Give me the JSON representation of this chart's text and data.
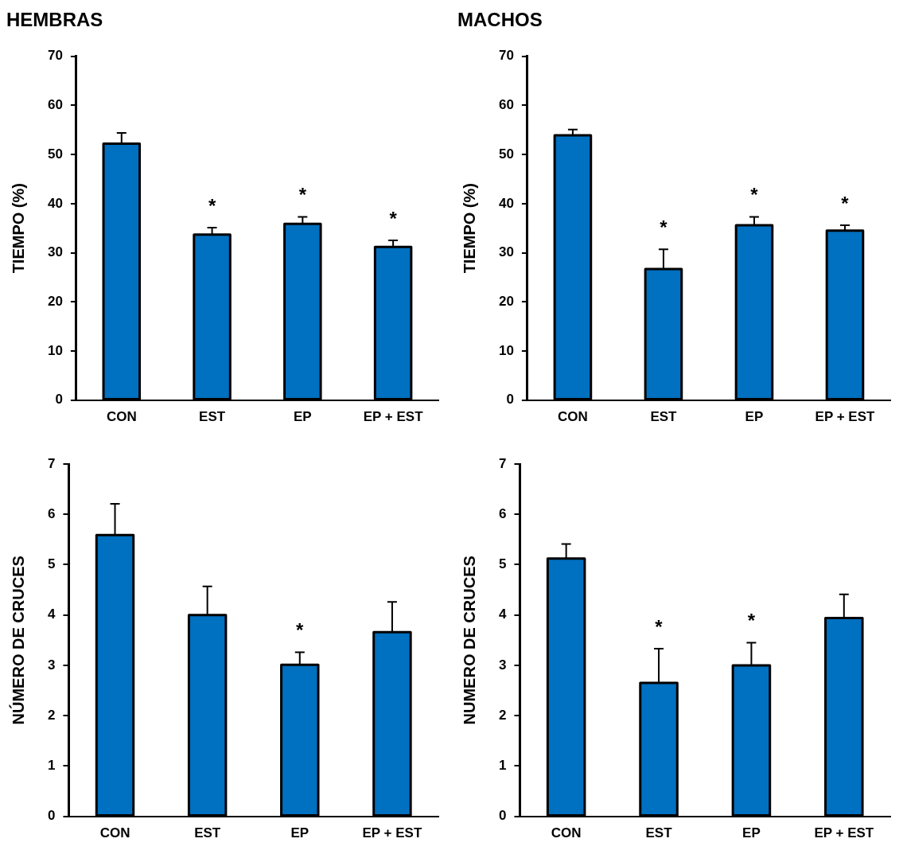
{
  "chart_data": [
    {
      "type": "bar",
      "title": "HEMBRAS",
      "ylabel": "TIEMPO (%)",
      "categories": [
        "CON",
        "EST",
        "EP",
        "EP + EST"
      ],
      "values": [
        52.2,
        33.7,
        35.9,
        31.2
      ],
      "color": "#0070c0",
      "errors": [
        [
          52.2,
          54.4
        ],
        [
          33.7,
          35.1
        ],
        [
          35.9,
          37.3
        ],
        [
          31.2,
          32.5
        ]
      ],
      "ylim": [
        0,
        70
      ],
      "yticks": [
        0,
        10,
        20,
        30,
        40,
        50,
        60,
        70
      ],
      "grid": false,
      "legend": false,
      "value_labels": [
        null,
        "*",
        "*",
        "*"
      ]
    },
    {
      "type": "bar",
      "title": "MACHOS",
      "ylabel": "TIEMPO (%)",
      "categories": [
        "CON",
        "EST",
        "EP",
        "EP + EST"
      ],
      "values": [
        53.9,
        26.7,
        35.6,
        34.5
      ],
      "color": "#0070c0",
      "errors": [
        [
          53.9,
          55.1
        ],
        [
          26.7,
          30.7
        ],
        [
          35.6,
          37.3
        ],
        [
          34.5,
          35.6
        ]
      ],
      "ylim": [
        0,
        70
      ],
      "yticks": [
        0,
        10,
        20,
        30,
        40,
        50,
        60,
        70
      ],
      "grid": false,
      "legend": false,
      "value_labels": [
        null,
        "*",
        "*",
        "*"
      ]
    },
    {
      "type": "bar",
      "ylabel": "NÚMERO DE CRUCES",
      "categories": [
        "CON",
        "EST",
        "EP",
        "EP + EST"
      ],
      "values": [
        5.59,
        4.0,
        3.01,
        3.66
      ],
      "color": "#0070c0",
      "errors": [
        [
          5.59,
          6.21
        ],
        [
          4.0,
          4.57
        ],
        [
          3.01,
          3.26
        ],
        [
          3.66,
          4.26
        ]
      ],
      "ylim": [
        0,
        7
      ],
      "yticks": [
        0,
        1,
        2,
        3,
        4,
        5,
        6,
        7
      ],
      "grid": false,
      "legend": false,
      "value_labels": [
        null,
        null,
        "*",
        null
      ]
    },
    {
      "type": "bar",
      "ylabel": "NUMERO DE CRUCES",
      "categories": [
        "CON",
        "EST",
        "EP",
        "EP + EST"
      ],
      "values": [
        5.12,
        2.65,
        3.0,
        3.94
      ],
      "color": "#0070c0",
      "errors": [
        [
          5.12,
          5.41
        ],
        [
          2.65,
          3.33
        ],
        [
          3.0,
          3.45
        ],
        [
          3.94,
          4.41
        ]
      ],
      "ylim": [
        0,
        7
      ],
      "yticks": [
        0,
        1,
        2,
        3,
        4,
        5,
        6,
        7
      ],
      "grid": false,
      "legend": false,
      "value_labels": [
        null,
        "*",
        "*",
        null
      ]
    }
  ]
}
